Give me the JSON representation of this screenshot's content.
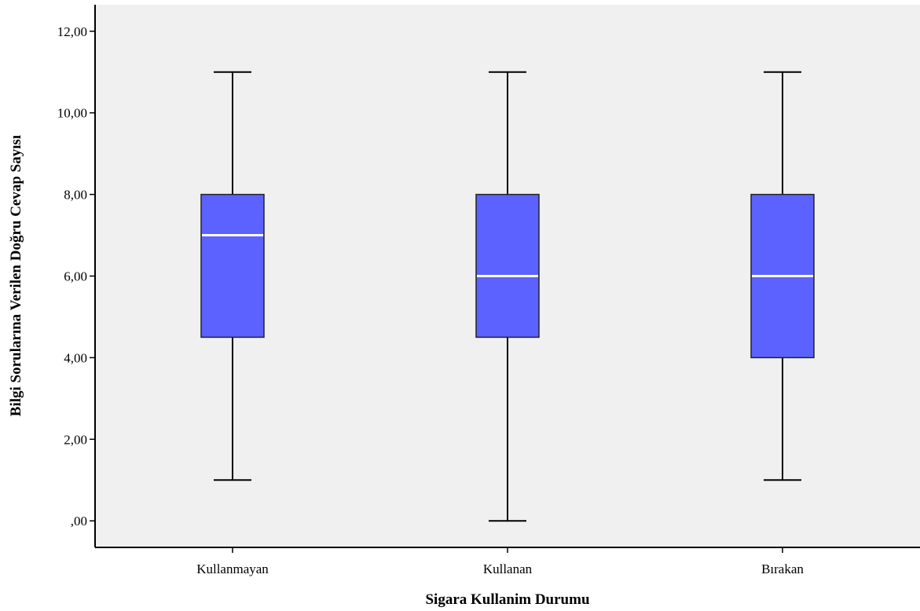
{
  "chart_data": {
    "type": "boxplot",
    "title": "",
    "xlabel": "Sigara Kullanim Durumu",
    "ylabel": "Bilgi Sorularına Verilen Doğru Cevap Sayısı",
    "ylim": [
      -0.65,
      12.65
    ],
    "yticks": [
      0,
      2,
      4,
      6,
      8,
      10,
      12
    ],
    "ytick_labels": [
      ",00",
      "2,00",
      "4,00",
      "6,00",
      "8,00",
      "10,00",
      "12,00"
    ],
    "grid": false,
    "categories": [
      "Kullanmayan",
      "Kullanan",
      "Bırakan"
    ],
    "boxes": [
      {
        "category": "Kullanmayan",
        "min": 1,
        "q1": 4.5,
        "median": 7,
        "q3": 8,
        "max": 11
      },
      {
        "category": "Kullanan",
        "min": 0,
        "q1": 4.5,
        "median": 6,
        "q3": 8,
        "max": 11
      },
      {
        "category": "Bırakan",
        "min": 1,
        "q1": 4,
        "median": 6,
        "q3": 8,
        "max": 11
      }
    ],
    "colors": {
      "plot_background": "#f0f0f0",
      "box_fill": "#5c62ff",
      "box_stroke": "#222222",
      "median": "#ffffff",
      "whisker": "#000000"
    }
  }
}
